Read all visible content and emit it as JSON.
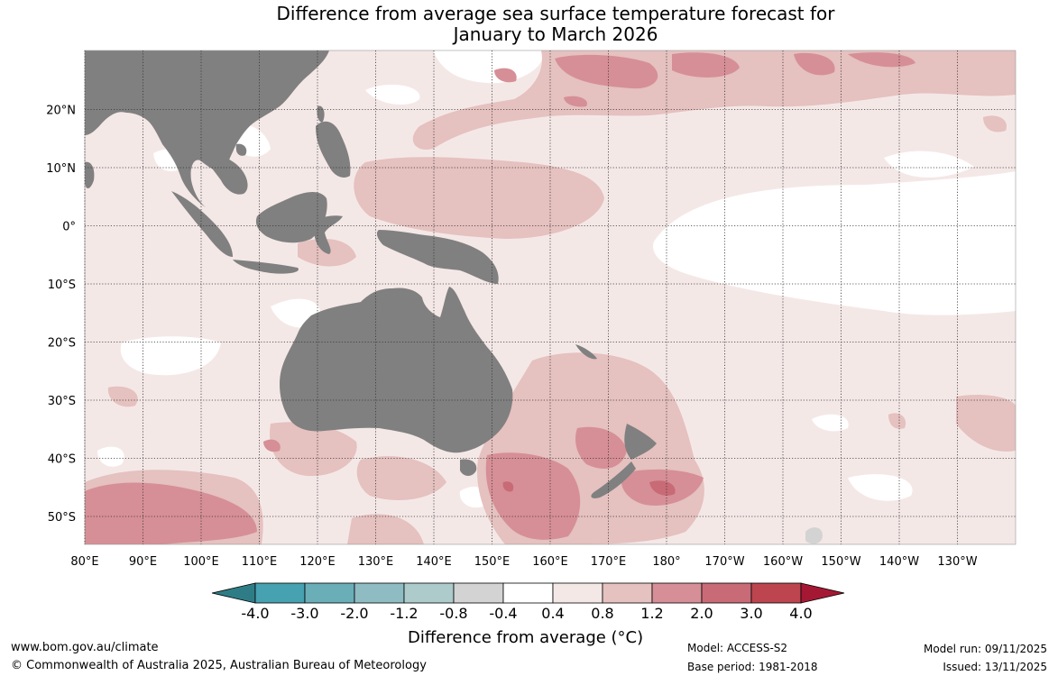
{
  "title": {
    "line1": "Difference from average sea surface temperature forecast for",
    "line2": "January to March 2026"
  },
  "map": {
    "lon_labels": [
      "80°E",
      "90°E",
      "100°E",
      "110°E",
      "120°E",
      "130°E",
      "140°E",
      "150°E",
      "160°E",
      "170°E",
      "180°",
      "170°W",
      "160°W",
      "150°W",
      "140°W",
      "130°W"
    ],
    "lon_values": [
      80,
      90,
      100,
      110,
      120,
      130,
      140,
      150,
      160,
      170,
      180,
      190,
      200,
      210,
      220,
      230
    ],
    "lat_labels": [
      "20°N",
      "10°N",
      "0°",
      "10°S",
      "20°S",
      "30°S",
      "40°S",
      "50°S"
    ],
    "lat_values": [
      20,
      10,
      0,
      -10,
      -20,
      -30,
      -40,
      -50
    ],
    "lon_range": [
      80,
      240
    ],
    "lat_range": [
      -55,
      30
    ],
    "land_color": "#808080",
    "sea_ice_color": "#d3d3d3"
  },
  "colorbar": {
    "tick_labels": [
      "-4.0",
      "-3.0",
      "-2.0",
      "-1.2",
      "-0.8",
      "-0.4",
      "0.4",
      "0.8",
      "1.2",
      "2.0",
      "3.0",
      "4.0"
    ],
    "colors": [
      "#2e7d86",
      "#46a1b0",
      "#6aaeb8",
      "#8fbcc3",
      "#aecbcb",
      "#d3d3d3",
      "#ffffff",
      "#f4e8e7",
      "#e5c1bf",
      "#d68f96",
      "#c86b76",
      "#bc4550",
      "#a51834"
    ],
    "label": "Difference from average (°C)"
  },
  "footer": {
    "website": "www.bom.gov.au/climate",
    "copyright": "© Commonwealth of Australia 2025, Australian Bureau of Meteorology",
    "model": "Model: ACCESS-S2",
    "base_period": "Base period: 1981-2018",
    "model_run": "Model run: 09/11/2025",
    "issued": "Issued: 13/11/2025"
  }
}
